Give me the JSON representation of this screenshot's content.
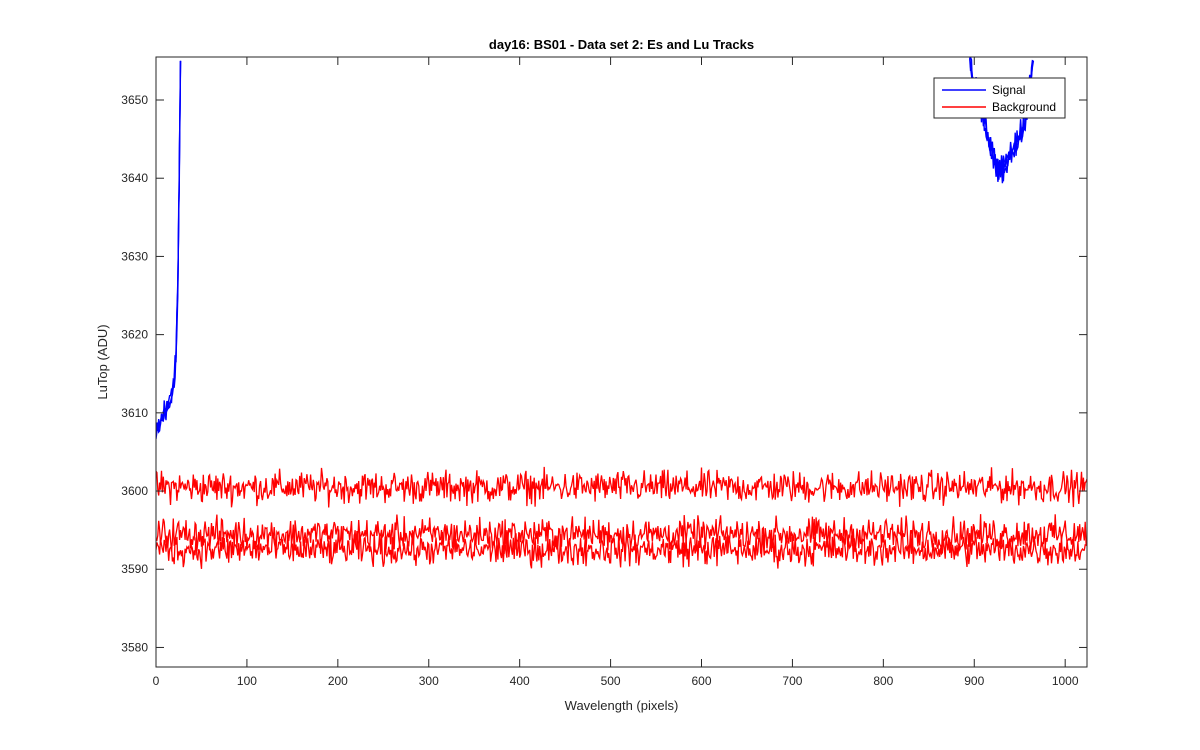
{
  "chart_data": {
    "type": "line",
    "title": "day16: BS01 - Data set 2: Es and Lu Tracks",
    "xlabel": "Wavelength (pixels)",
    "ylabel": "LuTop (ADU)",
    "xlim": [
      0,
      1024
    ],
    "ylim": [
      3577.5,
      3655.5
    ],
    "xticks": [
      0,
      100,
      200,
      300,
      400,
      500,
      600,
      700,
      800,
      900,
      1000
    ],
    "yticks": [
      3580,
      3590,
      3600,
      3610,
      3620,
      3630,
      3640,
      3650
    ],
    "grid": false,
    "legend": {
      "placement": "top-right",
      "entries": [
        "Signal",
        "Background"
      ]
    },
    "series": [
      {
        "name": "Signal",
        "color": "#0000ff",
        "segments": [
          {
            "x": [
              0,
              5,
              10,
              15,
              20,
              22,
              24,
              25,
              26,
              27
            ],
            "y": [
              3607,
              3609,
              3610,
              3611,
              3614,
              3618,
              3626,
              3635,
              3645,
              3655
            ]
          },
          {
            "x": [
              895,
              900,
              905,
              910,
              915,
              920,
              925,
              930,
              935,
              940,
              945,
              950,
              955,
              960,
              965
            ],
            "y": [
              3655,
              3652,
              3650,
              3648,
              3645,
              3643,
              3642,
              3641,
              3642,
              3643,
              3644,
              3645,
              3647,
              3651,
              3655
            ]
          }
        ]
      },
      {
        "name": "Background",
        "color": "#ff0000",
        "x": [
          0,
          1024
        ],
        "y": [
          3600.5,
          3600.5
        ]
      },
      {
        "name": "Background",
        "color": "#ff0000",
        "x": [
          0,
          1024
        ],
        "y": [
          3594.5,
          3594.5
        ]
      },
      {
        "name": "Background",
        "color": "#ff0000",
        "x": [
          0,
          1024
        ],
        "y": [
          3592.5,
          3592.5
        ]
      }
    ]
  }
}
